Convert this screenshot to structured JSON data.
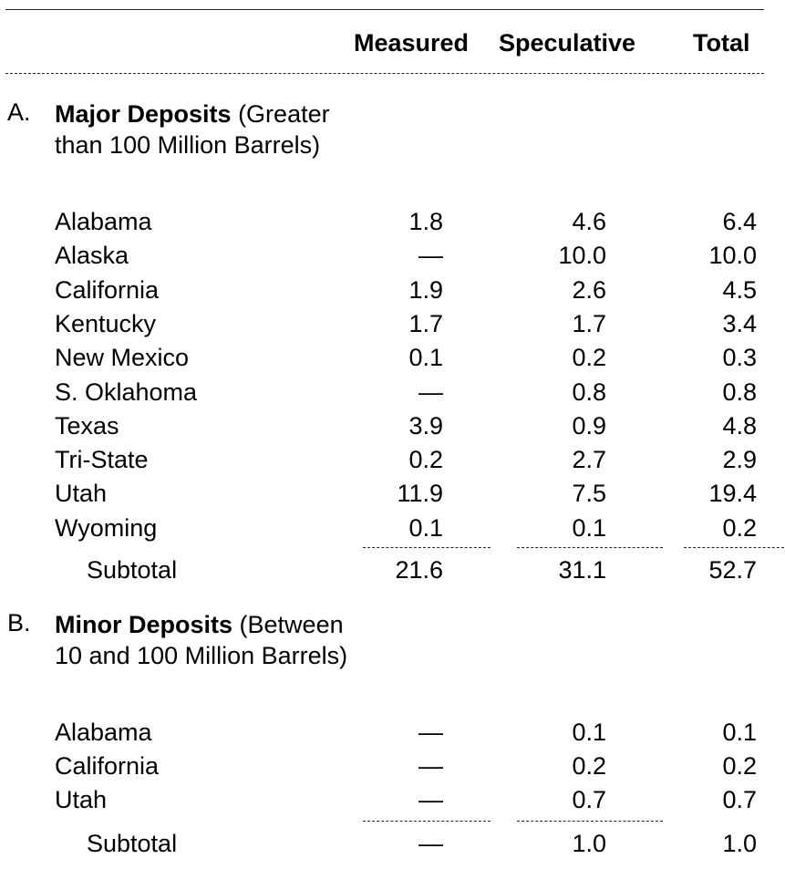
{
  "headers": {
    "measured": "Measured",
    "speculative": "Speculative",
    "total": "Total"
  },
  "sections": [
    {
      "letter": "A.",
      "title_bold": "Major Deposits",
      "title_rest": "(Greater than 100 Million Barrels)",
      "rows": [
        {
          "name": "Alabama",
          "measured": "1.8",
          "speculative": "4.6",
          "total": "6.4"
        },
        {
          "name": "Alaska",
          "measured": "—",
          "speculative": "10.0",
          "total": "10.0"
        },
        {
          "name": "California",
          "measured": "1.9",
          "speculative": "2.6",
          "total": "4.5"
        },
        {
          "name": "Kentucky",
          "measured": "1.7",
          "speculative": "1.7",
          "total": "3.4"
        },
        {
          "name": "New Mexico",
          "measured": "0.1",
          "speculative": "0.2",
          "total": "0.3"
        },
        {
          "name": "S. Oklahoma",
          "measured": "—",
          "speculative": "0.8",
          "total": "0.8"
        },
        {
          "name": "Texas",
          "measured": "3.9",
          "speculative": "0.9",
          "total": "4.8"
        },
        {
          "name": "Tri-State",
          "measured": "0.2",
          "speculative": "2.7",
          "total": "2.9"
        },
        {
          "name": "Utah",
          "measured": "11.9",
          "speculative": "7.5",
          "total": "19.4"
        },
        {
          "name": "Wyoming",
          "measured": "0.1",
          "speculative": "0.1",
          "total": "0.2"
        }
      ],
      "subtotal": {
        "label": "Subtotal",
        "measured": "21.6",
        "speculative": "31.1",
        "total": "52.7"
      }
    },
    {
      "letter": "B.",
      "title_bold": "Minor Deposits",
      "title_rest": "(Between 10 and 100 Million Barrels)",
      "rows": [
        {
          "name": "Alabama",
          "measured": "—",
          "speculative": "0.1",
          "total": "0.1"
        },
        {
          "name": "California",
          "measured": "—",
          "speculative": "0.2",
          "total": "0.2"
        },
        {
          "name": "Utah",
          "measured": "—",
          "speculative": "0.7",
          "total": "0.7"
        }
      ],
      "subtotal": {
        "label": "Subtotal",
        "measured": "—",
        "speculative": "1.0",
        "total": "1.0"
      }
    }
  ]
}
